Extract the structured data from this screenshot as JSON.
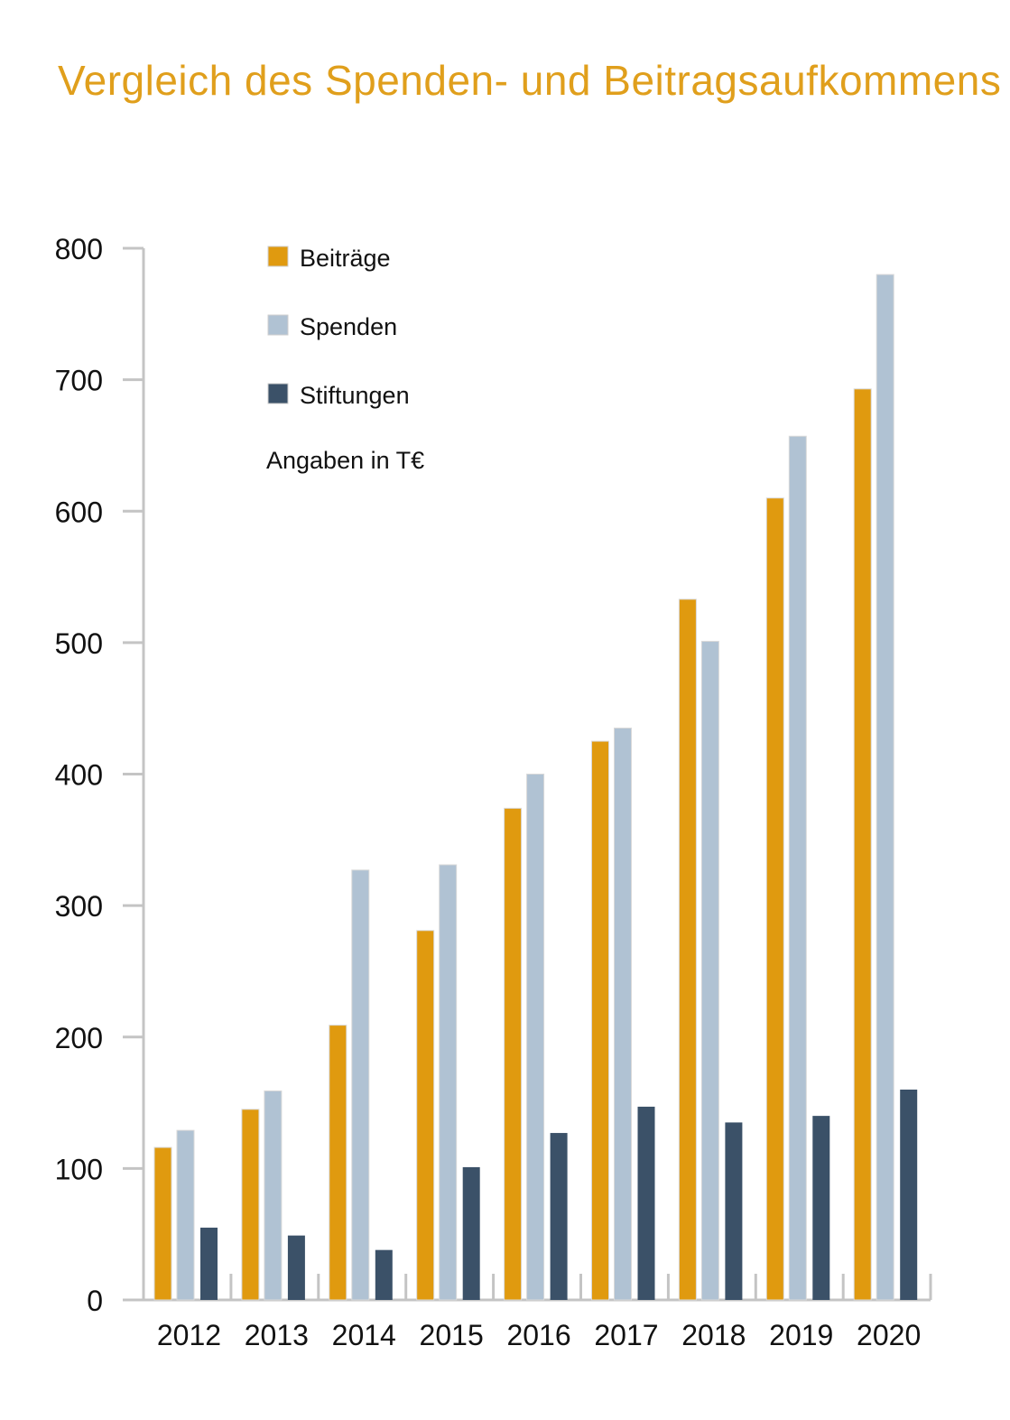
{
  "chart_data": {
    "type": "bar",
    "title": "Vergleich des Spenden- und Beitragsaufkommens",
    "note": "Angaben in T€",
    "categories": [
      "2012",
      "2013",
      "2014",
      "2015",
      "2016",
      "2017",
      "2018",
      "2019",
      "2020"
    ],
    "series": [
      {
        "name": "Beiträge",
        "color": "#e09a0f",
        "values": [
          116,
          145,
          209,
          281,
          374,
          425,
          533,
          610,
          693
        ]
      },
      {
        "name": "Spenden",
        "color": "#b0c2d3",
        "values": [
          129,
          159,
          327,
          331,
          400,
          435,
          501,
          657,
          780
        ]
      },
      {
        "name": "Stiftungen",
        "color": "#3b5168",
        "values": [
          55,
          49,
          38,
          101,
          127,
          147,
          135,
          140,
          160
        ]
      }
    ],
    "yticks": [
      "0",
      "100",
      "200",
      "300",
      "400",
      "500",
      "600",
      "700",
      "800"
    ],
    "ylim": [
      0,
      800
    ],
    "legend_position": "top-left",
    "grid": false
  }
}
